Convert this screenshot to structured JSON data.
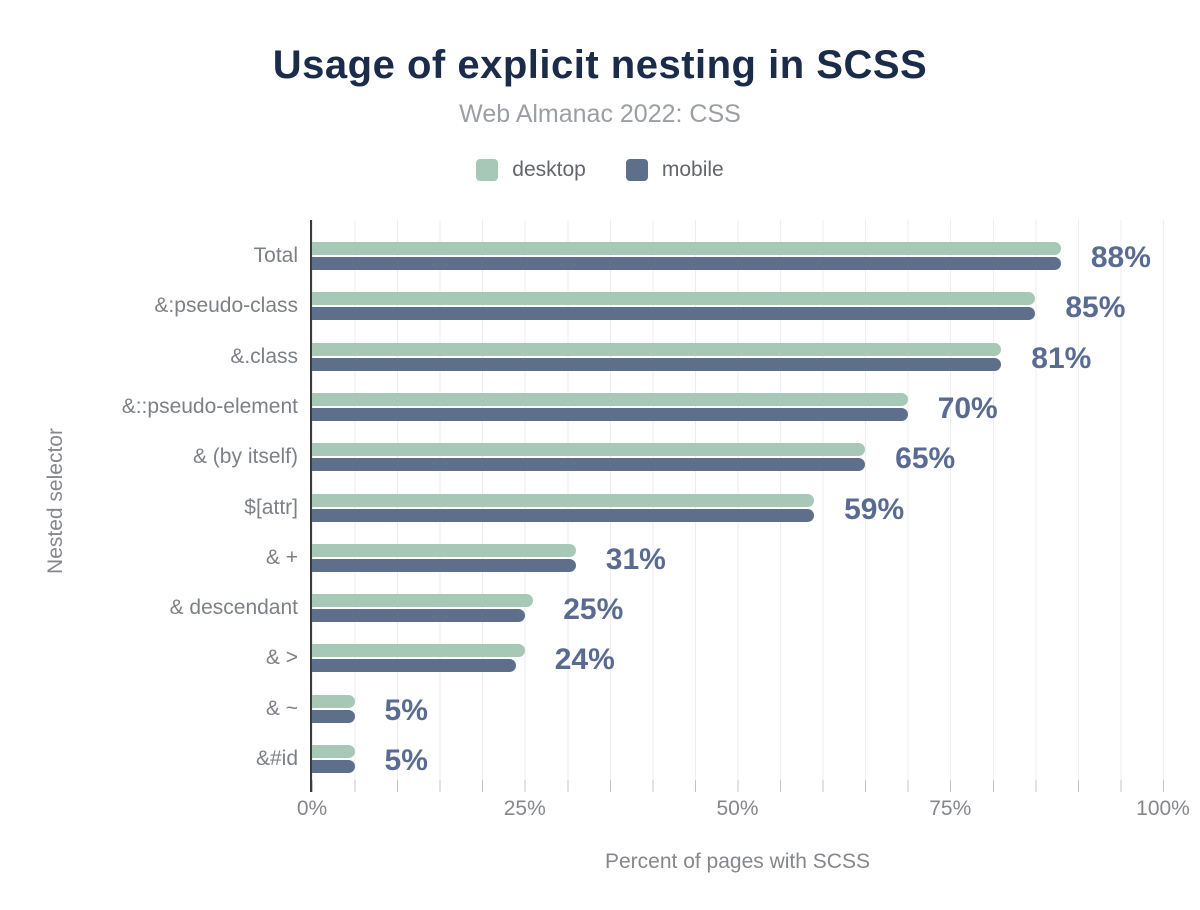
{
  "chart_data": {
    "type": "bar",
    "orientation": "horizontal",
    "title": "Usage of explicit nesting in SCSS",
    "subtitle": "Web Almanac 2022: CSS",
    "xlabel": "Percent of pages with SCSS",
    "ylabel": "Nested selector",
    "xlim": [
      0,
      100
    ],
    "x_tick_labels": [
      "0%",
      "25%",
      "50%",
      "75%",
      "100%"
    ],
    "grid": "faint vertical minor gridlines every 5%",
    "legend_position": "top-center",
    "categories": [
      "Total",
      "&:pseudo-class",
      "&.class",
      "&::pseudo-element",
      "& (by itself)",
      "$[attr]",
      "& +",
      "& descendant",
      "& >",
      "& ~",
      "&#id"
    ],
    "series": [
      {
        "name": "desktop",
        "color": "#a8c8b7",
        "values": [
          88,
          85,
          81,
          70,
          65,
          59,
          31,
          26,
          25,
          5,
          5
        ]
      },
      {
        "name": "mobile",
        "color": "#5d6f8b",
        "values": [
          88,
          85,
          81,
          70,
          65,
          59,
          31,
          25,
          24,
          5,
          5
        ]
      }
    ],
    "value_labels": [
      "88%",
      "85%",
      "81%",
      "70%",
      "65%",
      "59%",
      "31%",
      "25%",
      "24%",
      "5%",
      "5%"
    ]
  },
  "style": {
    "title_color": "#1b2b4a",
    "subtitle_color": "#9b9ea4",
    "legend_text_color": "#63666c",
    "axis_text_color": "#85878c",
    "category_label_color": "#7d8086",
    "value_label_color": "#5a6b92",
    "axis_line_color": "#3b3b3b",
    "gridline_color": "#ededed",
    "background": "#ffffff"
  }
}
